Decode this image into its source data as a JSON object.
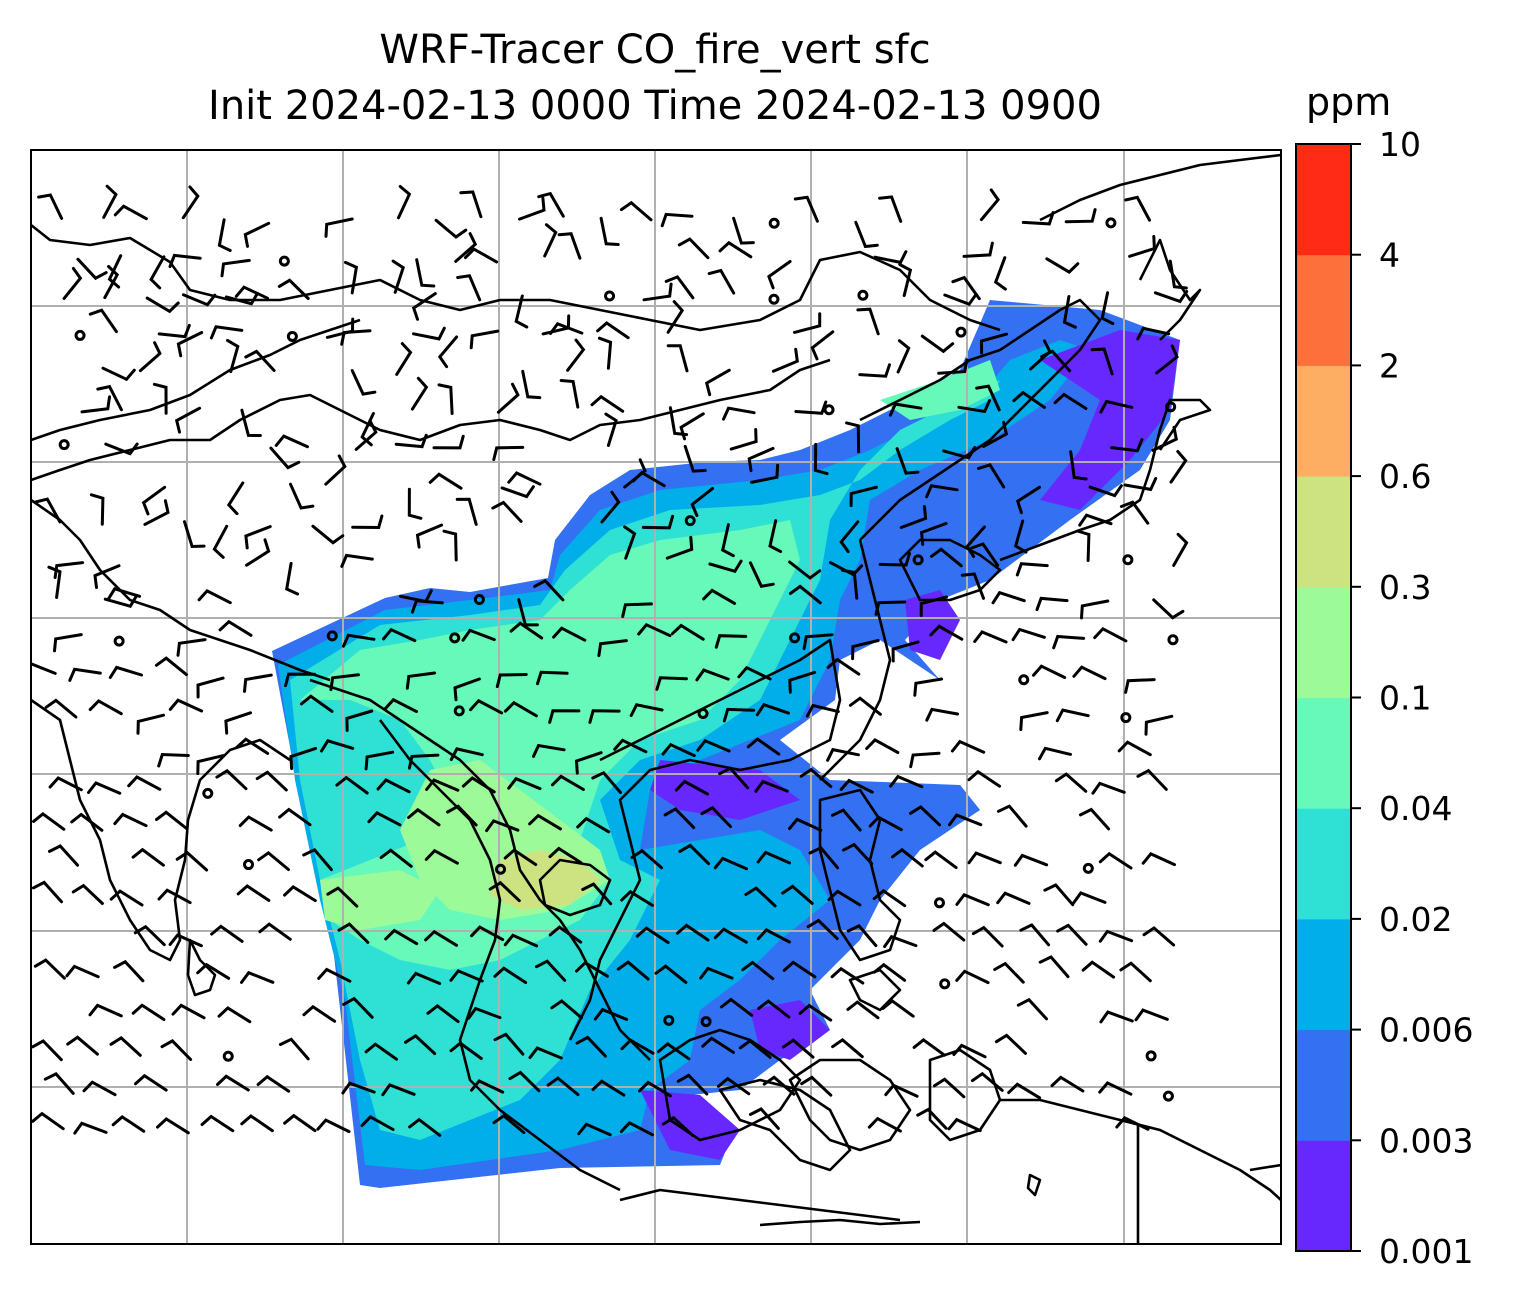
{
  "chart_data": {
    "type": "heatmap",
    "title_line1": "WRF-Tracer CO_fire_vert sfc",
    "title_line2": "Init 2024-02-13 0000 Time 2024-02-13 0900",
    "grid": true,
    "colorbar": {
      "unit": "ppm",
      "levels": [
        "0.001",
        "0.003",
        "0.006",
        "0.02",
        "0.04",
        "0.1",
        "0.3",
        "0.6",
        "2",
        "4",
        "10"
      ],
      "colors": [
        "#6728fd",
        "#3371f2",
        "#01aeea",
        "#2fe0d4",
        "#66f9b9",
        "#9cfa99",
        "#cde382",
        "#fdae62",
        "#fd6f3b",
        "#ff2b17"
      ]
    }
  }
}
